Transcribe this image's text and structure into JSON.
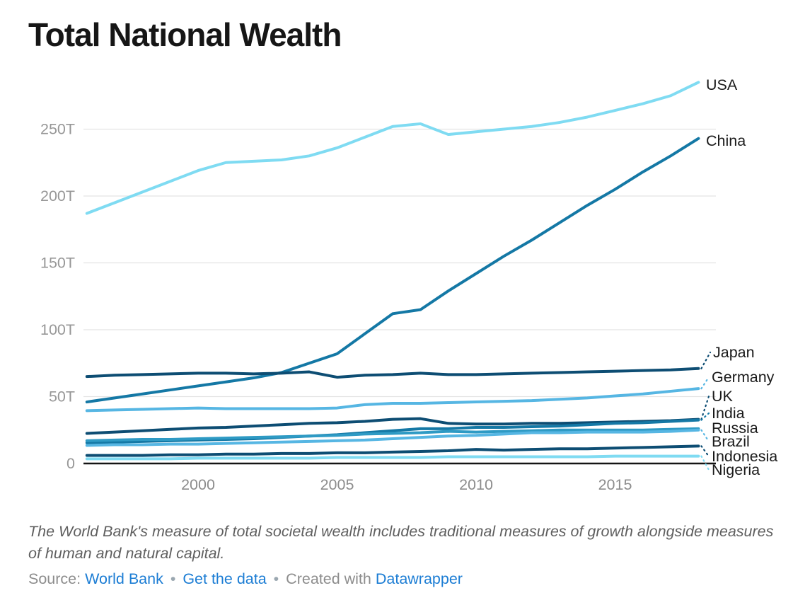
{
  "title": "Total National Wealth",
  "note": "The World Bank's measure of total societal wealth includes traditional measures of growth alongside measures of human and natural capital.",
  "source": {
    "prefix": "Source:",
    "world_bank_link": "World Bank",
    "sep1": "•",
    "get_data_link": "Get the data",
    "sep2": "•",
    "created_with": "Created with",
    "datawrapper_link": "Datawrapper"
  },
  "colors": {
    "link_blue": "#1c7dd4",
    "axis_black": "#141414",
    "gridline": "#e3e3e3",
    "tick_label": "#979797",
    "series_label": "#1a1a1a"
  },
  "chart_data": {
    "type": "line",
    "unit": "trillion USD",
    "x": [
      1996,
      1997,
      1998,
      1999,
      2000,
      2001,
      2002,
      2003,
      2004,
      2005,
      2006,
      2007,
      2008,
      2009,
      2010,
      2011,
      2012,
      2013,
      2014,
      2015,
      2016,
      2017,
      2018
    ],
    "x_ticks": [
      2000,
      2005,
      2010,
      2015
    ],
    "y_ticks": [
      {
        "v": 0,
        "label": "0"
      },
      {
        "v": 50,
        "label": "50T"
      },
      {
        "v": 100,
        "label": "100T"
      },
      {
        "v": 150,
        "label": "150T"
      },
      {
        "v": 200,
        "label": "200T"
      },
      {
        "v": 250,
        "label": "250T"
      }
    ],
    "ylim": [
      0,
      290
    ],
    "grid": true,
    "legend_position": "line-end-labels",
    "series": [
      {
        "name": "USA",
        "color": "#7fdbf2",
        "values": [
          187,
          195,
          203,
          211,
          219,
          225,
          226,
          227,
          230,
          236,
          244,
          252,
          254,
          246,
          248,
          250,
          252,
          255,
          259,
          264,
          269,
          275,
          285
        ]
      },
      {
        "name": "China",
        "color": "#1478a5",
        "values": [
          46,
          49,
          52,
          55,
          58,
          61,
          64,
          68,
          75,
          82,
          97,
          112,
          115,
          129,
          142,
          155,
          167,
          180,
          193,
          205,
          218,
          230,
          243
        ]
      },
      {
        "name": "Japan",
        "color": "#0d4d73",
        "values": [
          65,
          66,
          66.5,
          67,
          67.5,
          67.5,
          67,
          67.5,
          68.5,
          64.5,
          66,
          66.5,
          67.5,
          66.5,
          66.5,
          67,
          67.5,
          68,
          68.5,
          69,
          69.5,
          70,
          71
        ]
      },
      {
        "name": "Germany",
        "color": "#56b6e3",
        "values": [
          39.5,
          40,
          40.5,
          41,
          41.5,
          41,
          41,
          41,
          41,
          41.5,
          44,
          45,
          45,
          45.5,
          46,
          46.5,
          47,
          48,
          49,
          50.5,
          52,
          54,
          56
        ]
      },
      {
        "name": "UK",
        "color": "#0d4d73",
        "values": [
          22.5,
          23.5,
          24.5,
          25.5,
          26.5,
          27,
          28,
          29,
          30,
          30.5,
          31.5,
          33,
          33.5,
          30,
          29.5,
          29.5,
          30,
          30,
          30.5,
          31,
          31.5,
          32,
          33
        ]
      },
      {
        "name": "India",
        "color": "#1478a5",
        "values": [
          15.5,
          16,
          16.5,
          17,
          17.5,
          18,
          18.5,
          19.5,
          20.5,
          21.5,
          23,
          24.5,
          26,
          26,
          27,
          27,
          27.5,
          28,
          29,
          30,
          30.5,
          31.5,
          32.5
        ]
      },
      {
        "name": "Russia",
        "color": "#2e9ac4",
        "values": [
          17,
          17.5,
          18,
          18,
          18.5,
          19,
          19.5,
          20,
          20.5,
          21,
          22,
          22.5,
          23,
          24,
          23.5,
          24,
          24.5,
          25,
          25,
          25,
          25,
          25.5,
          26
        ]
      },
      {
        "name": "Brazil",
        "color": "#56b6e3",
        "values": [
          13.5,
          14,
          14,
          14.5,
          14.5,
          15,
          15.5,
          16,
          16.5,
          17,
          17.5,
          18.5,
          19.5,
          20.5,
          21,
          22,
          23,
          23,
          23.5,
          23.5,
          23.5,
          24,
          25
        ]
      },
      {
        "name": "Indonesia",
        "color": "#0d4d73",
        "values": [
          6,
          6,
          6,
          6.5,
          6.5,
          7,
          7,
          7.5,
          7.5,
          8,
          8,
          8.5,
          9,
          9.5,
          10.5,
          10,
          10.5,
          11,
          11,
          11.5,
          12,
          12.5,
          13
        ]
      },
      {
        "name": "Nigeria",
        "color": "#7fdbf2",
        "values": [
          3.5,
          3.5,
          3.5,
          3.5,
          4,
          4,
          4,
          4,
          4,
          4.5,
          4.5,
          4.5,
          4.5,
          5,
          5,
          5,
          5,
          5,
          5,
          5.5,
          5.5,
          5.5,
          5.5
        ]
      }
    ]
  }
}
